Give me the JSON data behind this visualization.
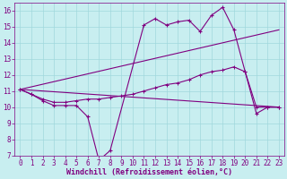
{
  "title": "",
  "xlabel": "Windchill (Refroidissement éolien,°C)",
  "bg_color": "#c8eef0",
  "line_color": "#800080",
  "grid_color": "#a0d8dc",
  "xlim": [
    -0.5,
    23.5
  ],
  "ylim": [
    7,
    16.5
  ],
  "yticks": [
    7,
    8,
    9,
    10,
    11,
    12,
    13,
    14,
    15,
    16
  ],
  "xticks": [
    0,
    1,
    2,
    3,
    4,
    5,
    6,
    7,
    8,
    9,
    10,
    11,
    12,
    13,
    14,
    15,
    16,
    17,
    18,
    19,
    20,
    21,
    22,
    23
  ],
  "line1_x": [
    0,
    1,
    2,
    3,
    4,
    5,
    6,
    7,
    8,
    11,
    12,
    13,
    14,
    15,
    16,
    17,
    18,
    19,
    20,
    21,
    22,
    23
  ],
  "line1_y": [
    11.1,
    10.8,
    10.4,
    10.1,
    10.1,
    10.1,
    9.4,
    6.7,
    7.3,
    15.1,
    15.5,
    15.1,
    15.3,
    15.4,
    14.7,
    15.7,
    16.2,
    14.8,
    12.2,
    9.6,
    10.0,
    10.0
  ],
  "line2_x": [
    0,
    1,
    2,
    3,
    4,
    5,
    6,
    7,
    8,
    9,
    10,
    11,
    12,
    13,
    14,
    15,
    16,
    17,
    18,
    19,
    20,
    21,
    22,
    23
  ],
  "line2_y": [
    11.1,
    10.8,
    10.5,
    10.3,
    10.3,
    10.4,
    10.5,
    10.5,
    10.6,
    10.7,
    10.8,
    11.0,
    11.2,
    11.4,
    11.5,
    11.7,
    12.0,
    12.2,
    12.3,
    12.5,
    12.2,
    10.0,
    10.0,
    10.0
  ],
  "line3_x": [
    0,
    23
  ],
  "line3_y": [
    11.1,
    14.8
  ],
  "line4_x": [
    0,
    23
  ],
  "line4_y": [
    11.1,
    10.0
  ],
  "tick_fontsize": 5.5,
  "xlabel_fontsize": 6,
  "lw": 0.8
}
